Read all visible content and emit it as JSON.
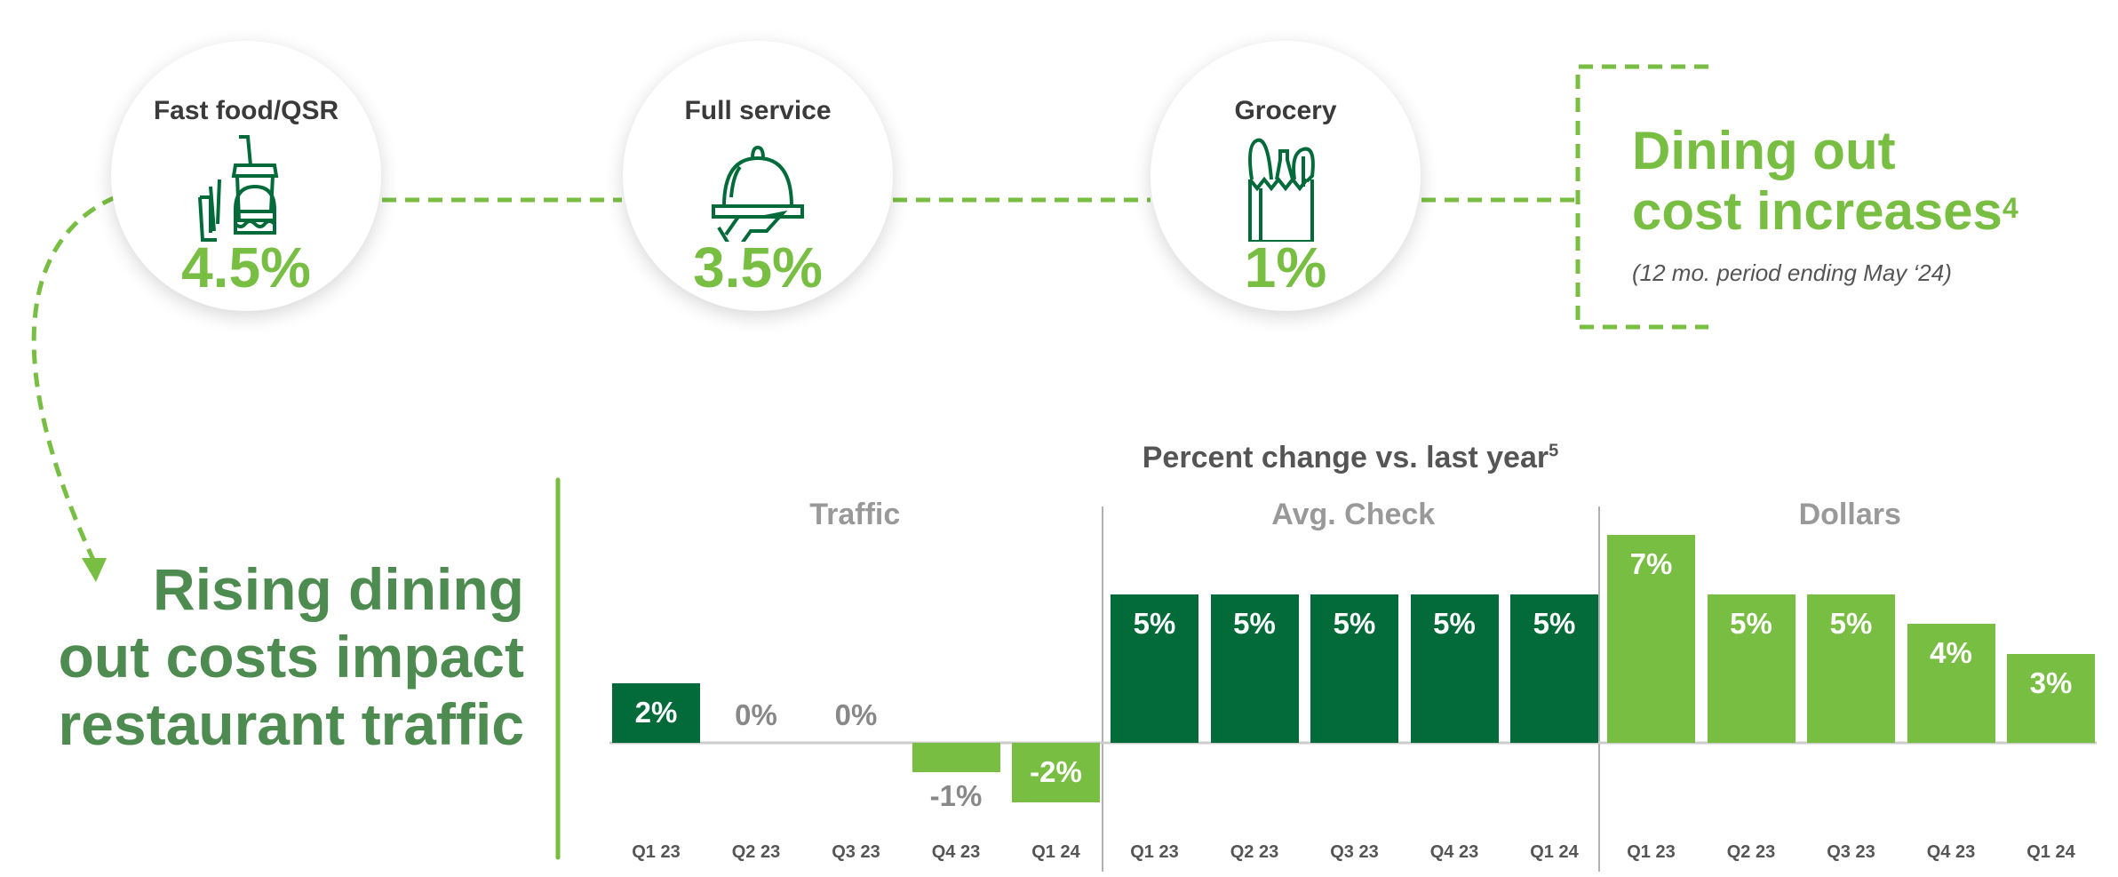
{
  "categories": [
    {
      "label": "Fast food/QSR",
      "value": "4.5%",
      "icon": "fast-food-icon"
    },
    {
      "label": "Full service",
      "value": "3.5%",
      "icon": "cloche-icon"
    },
    {
      "label": "Grocery",
      "value": "1%",
      "icon": "grocery-bag-icon"
    }
  ],
  "dining_out": {
    "title_line1": "Dining out",
    "title_line2": "cost increases",
    "footnote": "4",
    "subtitle": "(12 mo. period ending May ‘24)"
  },
  "rising": {
    "line1": "Rising dining",
    "line2": "out costs impact",
    "line3": "restaurant traffic"
  },
  "colors": {
    "dark_green": "#036b3a",
    "light_green": "#78be43",
    "heading_green": "#4e8b50",
    "gray": "#888888"
  },
  "chart_data": {
    "type": "bar",
    "title": "Percent change vs. last year",
    "title_footnote": "5",
    "ylim": [
      -2,
      7
    ],
    "groups": [
      {
        "name": "Traffic",
        "categories": [
          "Q1 23",
          "Q2 23",
          "Q3 23",
          "Q4 23",
          "Q1 24"
        ],
        "values": [
          2,
          0,
          0,
          -1,
          -2
        ],
        "labels": [
          "2%",
          "0%",
          "0%",
          "-1%",
          "-2%"
        ],
        "colors": [
          "#036b3a",
          "#036b3a",
          "#036b3a",
          "#78be43",
          "#78be43"
        ]
      },
      {
        "name": "Avg. Check",
        "categories": [
          "Q1 23",
          "Q2 23",
          "Q3 23",
          "Q4 23",
          "Q1 24"
        ],
        "values": [
          5,
          5,
          5,
          5,
          5
        ],
        "labels": [
          "5%",
          "5%",
          "5%",
          "5%",
          "5%"
        ],
        "colors": [
          "#036b3a",
          "#036b3a",
          "#036b3a",
          "#036b3a",
          "#036b3a"
        ]
      },
      {
        "name": "Dollars",
        "categories": [
          "Q1 23",
          "Q2 23",
          "Q3 23",
          "Q4 23",
          "Q1 24"
        ],
        "values": [
          7,
          5,
          5,
          4,
          3
        ],
        "labels": [
          "7%",
          "5%",
          "5%",
          "4%",
          "3%"
        ],
        "colors": [
          "#78be43",
          "#78be43",
          "#78be43",
          "#78be43",
          "#78be43"
        ]
      }
    ]
  }
}
